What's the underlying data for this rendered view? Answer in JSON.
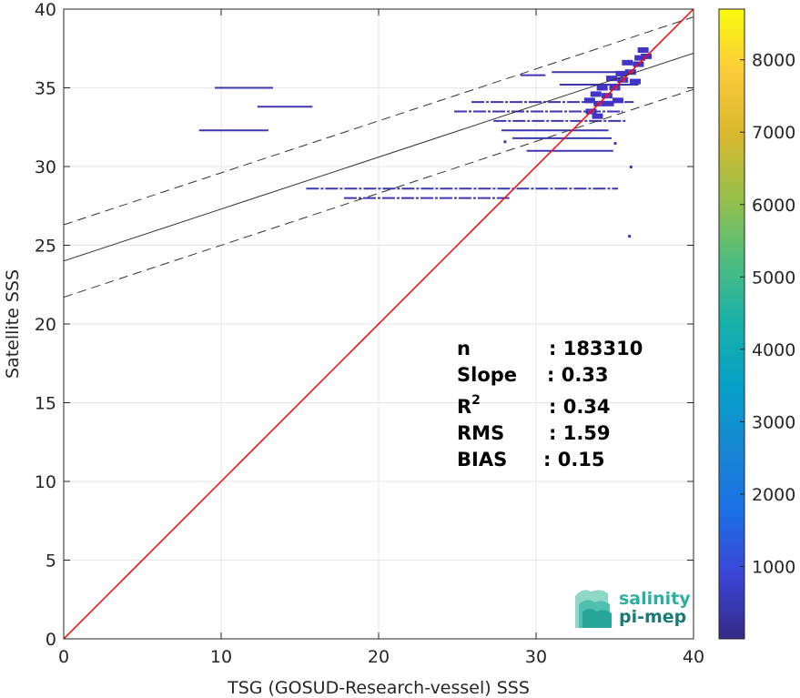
{
  "chart_data": {
    "type": "scatter",
    "subtype": "density-scatter",
    "xlabel": "TSG (GOSUD-Research-vessel) SSS",
    "ylabel": "Satellite SSS",
    "xlim": [
      0,
      40
    ],
    "ylim": [
      0,
      40
    ],
    "x_ticks": [
      "0",
      "10",
      "20",
      "30",
      "40"
    ],
    "y_ticks": [
      "0",
      "5",
      "10",
      "15",
      "20",
      "25",
      "30",
      "35",
      "40"
    ],
    "grid": true,
    "colorbar": {
      "range": [
        0,
        8700
      ],
      "ticks": [
        "1000",
        "2000",
        "3000",
        "4000",
        "5000",
        "6000",
        "7000",
        "8000"
      ],
      "colormap": "parula"
    },
    "identity_line": {
      "color": "#ff0000",
      "from": [
        0,
        0
      ],
      "to": [
        40,
        40
      ]
    },
    "regression": {
      "slope": 0.33,
      "intercept": 24.0,
      "upper_band_intercept": 26.3,
      "lower_band_intercept": 21.7
    },
    "clusters": [
      {
        "x0": 9.6,
        "x1": 13.3,
        "y": 35.0
      },
      {
        "x0": 12.3,
        "x1": 15.8,
        "y": 33.8
      },
      {
        "x0": 8.6,
        "x1": 13.0,
        "y": 32.3
      },
      {
        "x0": 15.4,
        "x1": 35.2,
        "y": 28.6
      },
      {
        "x0": 17.8,
        "x1": 28.3,
        "y": 28.0
      },
      {
        "x0": 24.8,
        "x1": 35.5,
        "y": 33.5
      },
      {
        "x0": 25.9,
        "x1": 36.2,
        "y": 34.1
      },
      {
        "x0": 27.3,
        "x1": 35.8,
        "y": 32.9
      },
      {
        "x0": 27.8,
        "x1": 34.6,
        "y": 32.3
      },
      {
        "x0": 28.5,
        "x1": 34.8,
        "y": 31.8
      },
      {
        "x0": 29.4,
        "x1": 34.9,
        "y": 31.0
      },
      {
        "x0": 31.0,
        "x1": 36.1,
        "y": 36.0
      },
      {
        "x0": 29.0,
        "x1": 30.6,
        "y": 35.8
      },
      {
        "x0": 31.5,
        "x1": 36.5,
        "y": 35.2
      }
    ],
    "dense_points": [
      [
        33.5,
        33.5
      ],
      [
        34.0,
        34.0
      ],
      [
        34.5,
        34.5
      ],
      [
        35.0,
        35.0
      ],
      [
        35.5,
        35.5
      ],
      [
        36.0,
        36.0
      ],
      [
        36.5,
        36.5
      ],
      [
        37.0,
        37.0
      ],
      [
        34.2,
        35.0
      ],
      [
        35.2,
        34.2
      ],
      [
        35.8,
        36.6
      ],
      [
        36.3,
        35.4
      ],
      [
        34.8,
        35.6
      ],
      [
        33.8,
        34.6
      ],
      [
        36.8,
        37.4
      ],
      [
        36.6,
        36.9
      ],
      [
        35.4,
        35.9
      ],
      [
        34.6,
        34.0
      ],
      [
        33.9,
        33.2
      ],
      [
        33.4,
        34.2
      ]
    ],
    "outliers": [
      [
        36.0,
        30.0
      ],
      [
        35.9,
        25.6
      ],
      [
        35.0,
        31.5
      ],
      [
        28.0,
        31.6
      ]
    ],
    "stats": {
      "n_label": "n",
      "n_value": ": 183310",
      "slope_label": "Slope",
      "slope_value": ": 0.33",
      "r2_label_base": "R",
      "r2_label_sup": "2",
      "r2_value": ": 0.34",
      "rms_label": "RMS",
      "rms_value": ": 1.59",
      "bias_label": "BIAS",
      "bias_value": ": 0.15"
    }
  },
  "logo": {
    "line1": "salinity",
    "line2": "pi-mep",
    "color1": "#2bb0a0",
    "color2": "#1a7a78"
  }
}
